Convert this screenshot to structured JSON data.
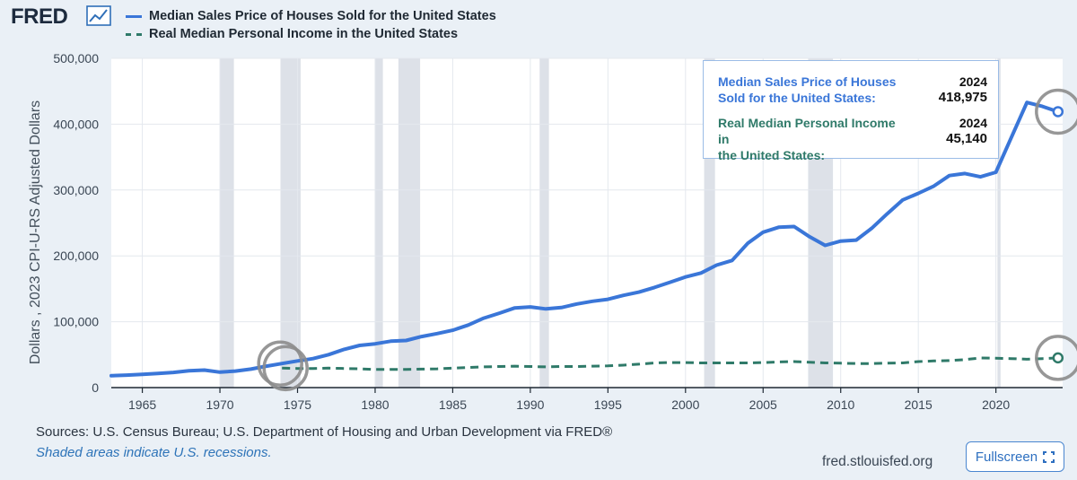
{
  "header": {
    "logo_text": "FRED",
    "logo_icon": "trend-chart-icon",
    "legend": [
      {
        "label": "Median Sales Price of Houses Sold for the United States",
        "color": "#3a76d8",
        "style": "solid"
      },
      {
        "label": "Real Median Personal Income in the United States",
        "color": "#2f7a69",
        "style": "dashed"
      }
    ]
  },
  "tooltip": {
    "series1": {
      "label_line1": "Median Sales Price of Houses",
      "label_line2": "Sold for the United States:",
      "year": "2024",
      "value": "418,975"
    },
    "series2": {
      "label_line1": "Real Median Personal Income in",
      "label_line2": "the United States:",
      "year": "2024",
      "value": "45,140"
    }
  },
  "footer": {
    "sources": "Sources: U.S. Census Bureau; U.S. Department of Housing and Urban Development via FRED®",
    "note": "Shaded areas indicate U.S. recessions.",
    "site": "fred.stlouisfed.org",
    "fullscreen_label": "Fullscreen",
    "fullscreen_icon": "expand-icon"
  },
  "chart_data": {
    "type": "line",
    "ylabel": "Dollars , 2023 CPI-U-RS Adjusted Dollars",
    "xlabel": "",
    "xlim": [
      1963,
      2024.3
    ],
    "ylim": [
      0,
      500000
    ],
    "x_ticks": [
      1965,
      1970,
      1975,
      1980,
      1985,
      1990,
      1995,
      2000,
      2005,
      2010,
      2015,
      2020
    ],
    "y_ticks": [
      0,
      100000,
      200000,
      300000,
      400000,
      500000
    ],
    "y_tick_labels": [
      "0",
      "100,000",
      "200,000",
      "300,000",
      "400,000",
      "500,000"
    ],
    "recessions": [
      [
        1970.0,
        1970.9
      ],
      [
        1973.9,
        1975.2
      ],
      [
        1980.0,
        1980.5
      ],
      [
        1981.5,
        1982.9
      ],
      [
        1990.6,
        1991.2
      ],
      [
        2001.2,
        2001.9
      ],
      [
        2007.9,
        2009.5
      ],
      [
        2020.1,
        2020.3
      ]
    ],
    "series": [
      {
        "name": "Median Sales Price of Houses Sold for the United States",
        "color": "#3a76d8",
        "style": "solid",
        "x": [
          1963,
          1964,
          1965,
          1966,
          1967,
          1968,
          1969,
          1970,
          1971,
          1972,
          1973,
          1974,
          1975,
          1976,
          1977,
          1978,
          1979,
          1980,
          1981,
          1982,
          1983,
          1984,
          1985,
          1986,
          1987,
          1988,
          1989,
          1990,
          1991,
          1992,
          1993,
          1994,
          1995,
          1996,
          1997,
          1998,
          1999,
          2000,
          2001,
          2002,
          2003,
          2004,
          2005,
          2006,
          2007,
          2008,
          2009,
          2010,
          2011,
          2012,
          2013,
          2014,
          2015,
          2016,
          2017,
          2018,
          2019,
          2020,
          2021,
          2022,
          2023,
          2024
        ],
        "values": [
          18000,
          19000,
          20000,
          21500,
          23000,
          25500,
          26500,
          23500,
          25000,
          28000,
          32500,
          36500,
          40500,
          44000,
          50000,
          58000,
          64000,
          66500,
          70500,
          71500,
          77500,
          82000,
          87000,
          95000,
          105500,
          113000,
          121000,
          122500,
          119500,
          121500,
          127000,
          131000,
          134000,
          140000,
          145000,
          152000,
          160000,
          168000,
          174000,
          186000,
          193000,
          219000,
          236000,
          243500,
          244500,
          229000,
          216000,
          222500,
          224000,
          242000,
          264000,
          285000,
          295000,
          306000,
          322000,
          325000,
          320000,
          327000,
          380000,
          433000,
          427000,
          418975
        ]
      },
      {
        "name": "Real Median Personal Income in the United States",
        "color": "#2f7a69",
        "style": "dashed",
        "x": [
          1974,
          1975,
          1976,
          1977,
          1978,
          1979,
          1980,
          1981,
          1982,
          1983,
          1984,
          1985,
          1986,
          1987,
          1988,
          1989,
          1990,
          1991,
          1992,
          1993,
          1994,
          1995,
          1996,
          1997,
          1998,
          1999,
          2000,
          2001,
          2002,
          2003,
          2004,
          2005,
          2006,
          2007,
          2008,
          2009,
          2010,
          2011,
          2012,
          2013,
          2014,
          2015,
          2016,
          2017,
          2018,
          2019,
          2020,
          2021,
          2022,
          2023,
          2024
        ],
        "values": [
          29500,
          29000,
          29000,
          29500,
          29000,
          28500,
          27500,
          27500,
          27500,
          28000,
          28500,
          29500,
          30500,
          31500,
          32000,
          32500,
          32000,
          31500,
          32000,
          32000,
          32500,
          33000,
          34000,
          35500,
          37500,
          38000,
          38000,
          37500,
          37500,
          37500,
          37500,
          38000,
          39000,
          39500,
          38500,
          37500,
          37000,
          36500,
          36500,
          37000,
          37500,
          39500,
          40500,
          41000,
          42500,
          45000,
          44500,
          44000,
          43000,
          44000,
          45140
        ]
      }
    ],
    "highlight_circles": [
      {
        "series": 0,
        "x": 1974
      },
      {
        "series": 1,
        "x": 1974
      },
      {
        "series": 0,
        "x": 2024
      },
      {
        "series": 1,
        "x": 2024
      }
    ]
  }
}
